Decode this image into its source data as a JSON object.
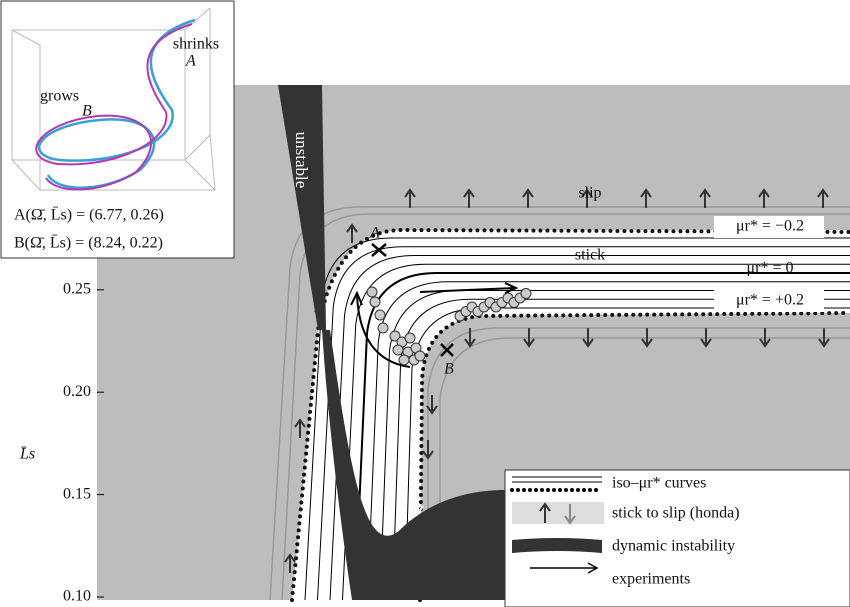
{
  "chart_data": {
    "type": "phase-diagram",
    "y_label": "L̄s",
    "ylim": [
      0.1,
      0.35
    ],
    "yticks": [
      {
        "value": 0.1,
        "label": "0.10"
      },
      0.15,
      {
        "value": 0.2,
        "label": "0.20"
      },
      0.25
    ],
    "regions": {
      "unstable": "unstable",
      "slip": "slip",
      "stick": "stick"
    },
    "curve_labels": [
      "μr* = −0.2",
      "μr* = 0",
      "μr* = +0.2"
    ],
    "points": [
      "A",
      "B"
    ],
    "legend": [
      "iso–μr* curves",
      "stick to slip (honda)",
      "dynamic instability",
      "experiments"
    ],
    "inset": {
      "shrinks": "shrinks",
      "grows": "grows",
      "A": "A",
      "B": "B",
      "coord_A": "A(Ω̄, L̄s) = (6.77, 0.26)",
      "coord_B": "B(Ω̄, L̄s) = (8.24, 0.22)"
    }
  }
}
